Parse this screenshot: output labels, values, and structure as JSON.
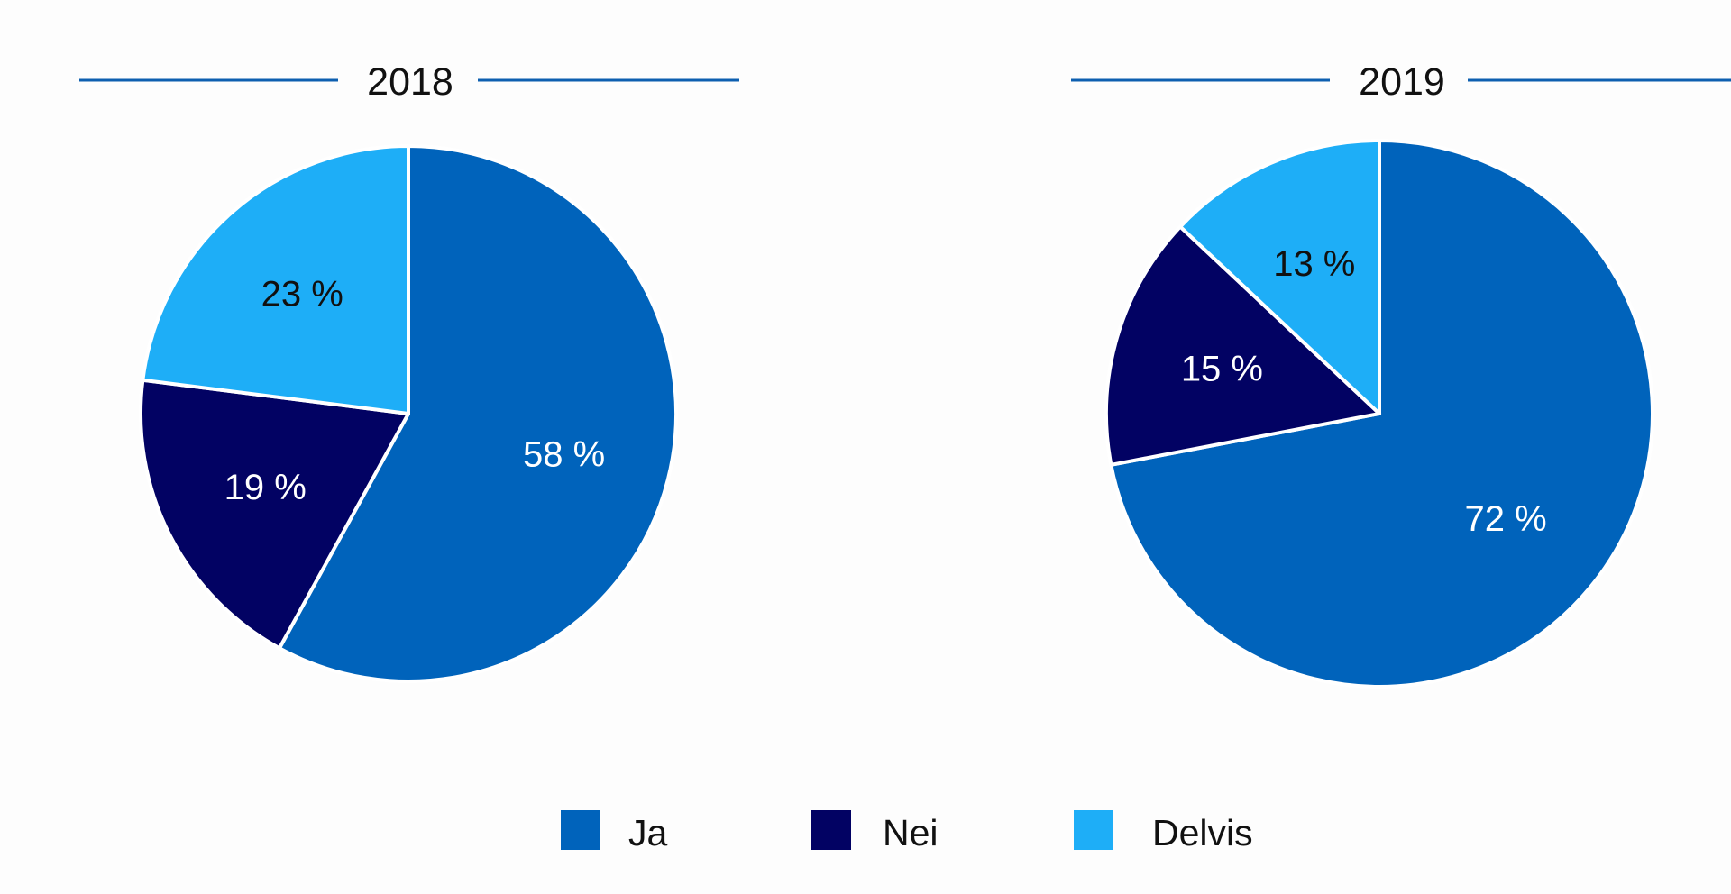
{
  "chart_data": [
    {
      "type": "pie",
      "title": "2018",
      "series": [
        {
          "name": "Ja",
          "value": 58,
          "label": "58 %",
          "color": "#0063bb"
        },
        {
          "name": "Nei",
          "value": 19,
          "label": "19 %",
          "color": "#020263"
        },
        {
          "name": "Delvis",
          "value": 23,
          "label": "23 %",
          "color": "#1eaef7"
        }
      ]
    },
    {
      "type": "pie",
      "title": "2019",
      "series": [
        {
          "name": "Ja",
          "value": 72,
          "label": "72 %",
          "color": "#0063bb"
        },
        {
          "name": "Nei",
          "value": 15,
          "label": "15 %",
          "color": "#020263"
        },
        {
          "name": "Delvis",
          "value": 13,
          "label": "13 %",
          "color": "#1eaef7"
        }
      ]
    }
  ],
  "legend": {
    "placement": "bottom-center",
    "items": [
      {
        "label": "Ja",
        "color": "#0063bb"
      },
      {
        "label": "Nei",
        "color": "#020263"
      },
      {
        "label": "Delvis",
        "color": "#1eaef7"
      }
    ]
  },
  "colors": {
    "title_rule": "#0d5fb0",
    "slice_border": "#ffffff",
    "label_on_dark": "#ffffff",
    "label_on_light": "#111111"
  }
}
